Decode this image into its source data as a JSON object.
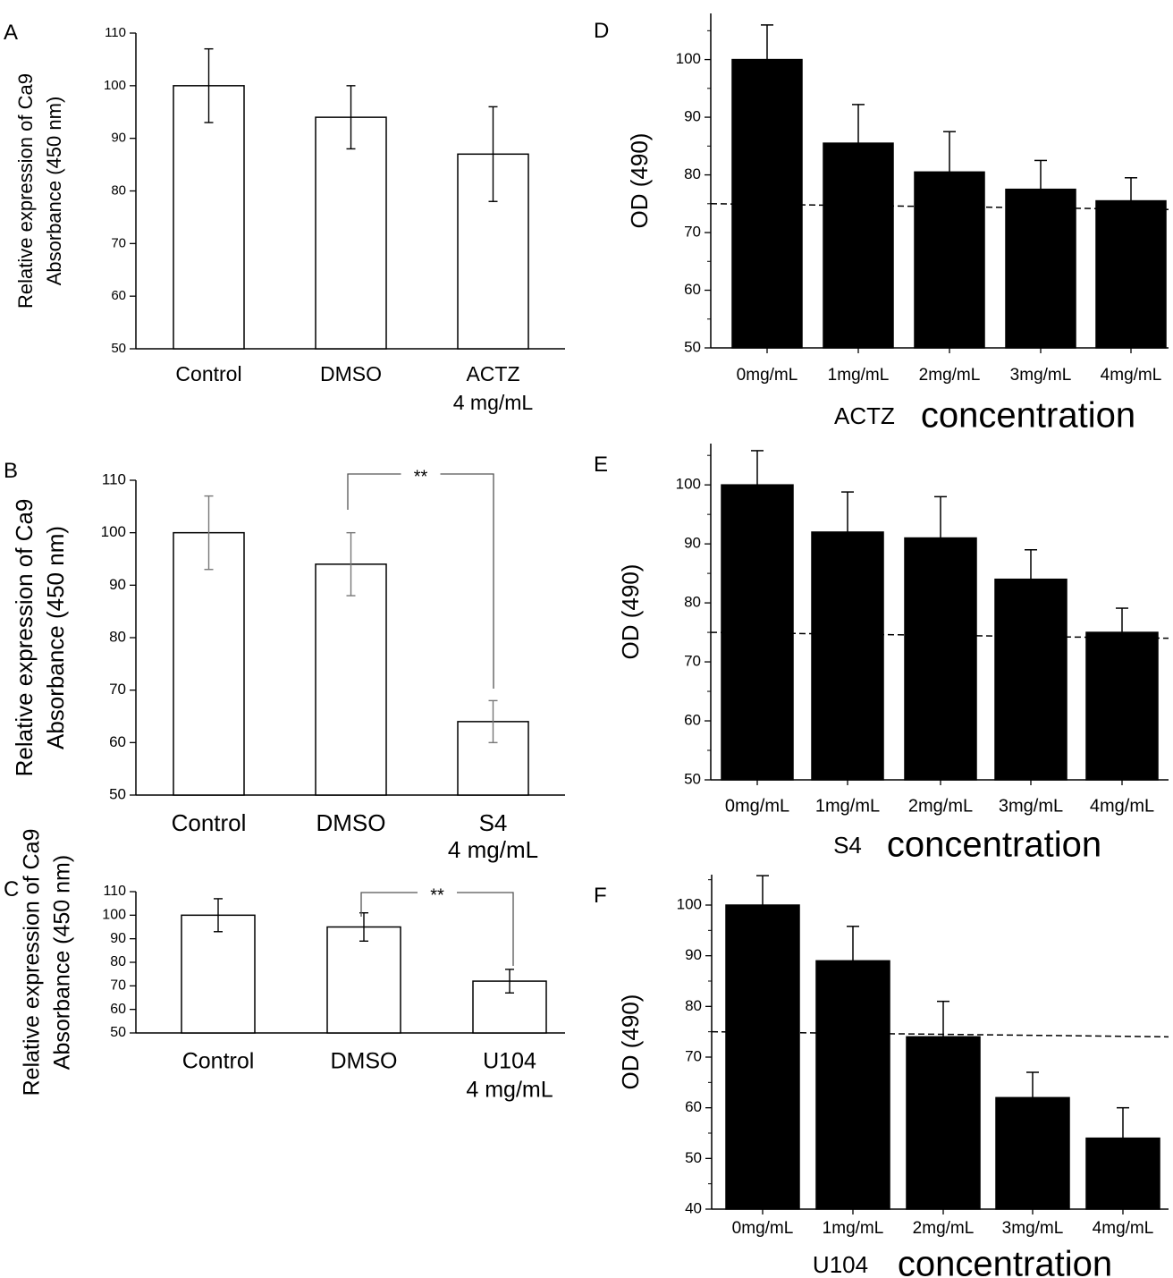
{
  "chart_data": [
    {
      "panel": "A",
      "type": "bar",
      "style": "open",
      "ylabel": [
        "Relative expression of Ca9",
        "Absorbance (450 nm)"
      ],
      "ylim": [
        50,
        110
      ],
      "yticks": [
        50,
        60,
        70,
        80,
        90,
        100,
        110
      ],
      "categories": [
        [
          "Control"
        ],
        [
          "DMSO"
        ],
        [
          "ACTZ",
          "4 mg/mL"
        ]
      ],
      "values": [
        100,
        94,
        87
      ],
      "errors": [
        7,
        6,
        9
      ],
      "significance": null
    },
    {
      "panel": "B",
      "type": "bar",
      "style": "open",
      "ylabel": [
        "Relative expression of Ca9",
        "Absorbance (450 nm)"
      ],
      "ylim": [
        50,
        110
      ],
      "yticks": [
        50,
        60,
        70,
        80,
        90,
        100,
        110
      ],
      "categories": [
        [
          "Control"
        ],
        [
          "DMSO"
        ],
        [
          "S4",
          "4 mg/mL"
        ]
      ],
      "values": [
        100,
        94,
        64
      ],
      "errors": [
        7,
        6,
        4
      ],
      "significance": {
        "from": 1,
        "to": 2,
        "label": "**"
      }
    },
    {
      "panel": "C",
      "type": "bar",
      "style": "open",
      "ylabel": [
        "Relative expression of Ca9",
        "Absorbance (450 nm)"
      ],
      "ylim": [
        50,
        110
      ],
      "yticks": [
        50,
        60,
        70,
        80,
        90,
        100,
        110
      ],
      "categories": [
        [
          "Control"
        ],
        [
          "DMSO"
        ],
        [
          "U104",
          "4 mg/mL"
        ]
      ],
      "values": [
        100,
        95,
        72
      ],
      "errors": [
        7,
        6,
        5
      ],
      "significance": {
        "from": 1,
        "to": 2,
        "label": "**"
      }
    },
    {
      "panel": "D",
      "type": "bar",
      "style": "filled",
      "ylabel": [
        "OD (490)"
      ],
      "ylim": [
        50,
        108
      ],
      "yticks": [
        50,
        60,
        70,
        80,
        90,
        100
      ],
      "categories": [
        [
          "0mg/mL"
        ],
        [
          "1mg/mL"
        ],
        [
          "2mg/mL"
        ],
        [
          "3mg/mL"
        ],
        [
          "4mg/mL"
        ]
      ],
      "values": [
        100,
        85.5,
        80.5,
        77.5,
        75.5
      ],
      "errors": [
        6,
        6.7,
        7,
        5,
        4
      ],
      "reference_line": [
        75,
        74
      ],
      "xlabel_prefix": "ACTZ",
      "xlabel_main": "concentration"
    },
    {
      "panel": "E",
      "type": "bar",
      "style": "filled",
      "ylabel": [
        "OD (490)"
      ],
      "ylim": [
        50,
        107
      ],
      "yticks": [
        50,
        60,
        70,
        80,
        90,
        100
      ],
      "categories": [
        [
          "0mg/mL"
        ],
        [
          "1mg/mL"
        ],
        [
          "2mg/mL"
        ],
        [
          "3mg/mL"
        ],
        [
          "4mg/mL"
        ]
      ],
      "values": [
        100,
        92,
        91,
        84,
        75
      ],
      "errors": [
        5.8,
        6.8,
        7,
        5,
        4.1
      ],
      "reference_line": [
        75,
        74
      ],
      "xlabel_prefix": "S4",
      "xlabel_main": "concentration"
    },
    {
      "panel": "F",
      "type": "bar",
      "style": "filled",
      "ylabel": [
        "OD (490)"
      ],
      "ylim": [
        40,
        106
      ],
      "yticks": [
        40,
        50,
        60,
        70,
        80,
        90,
        100
      ],
      "categories": [
        [
          "0mg/mL"
        ],
        [
          "1mg/mL"
        ],
        [
          "2mg/mL"
        ],
        [
          "3mg/mL"
        ],
        [
          "4mg/mL"
        ]
      ],
      "values": [
        100,
        89,
        74,
        62,
        54
      ],
      "errors": [
        5.8,
        6.8,
        7,
        5,
        6
      ],
      "reference_line": [
        75,
        74
      ],
      "xlabel_prefix": "U104",
      "xlabel_main": "concentration"
    }
  ]
}
